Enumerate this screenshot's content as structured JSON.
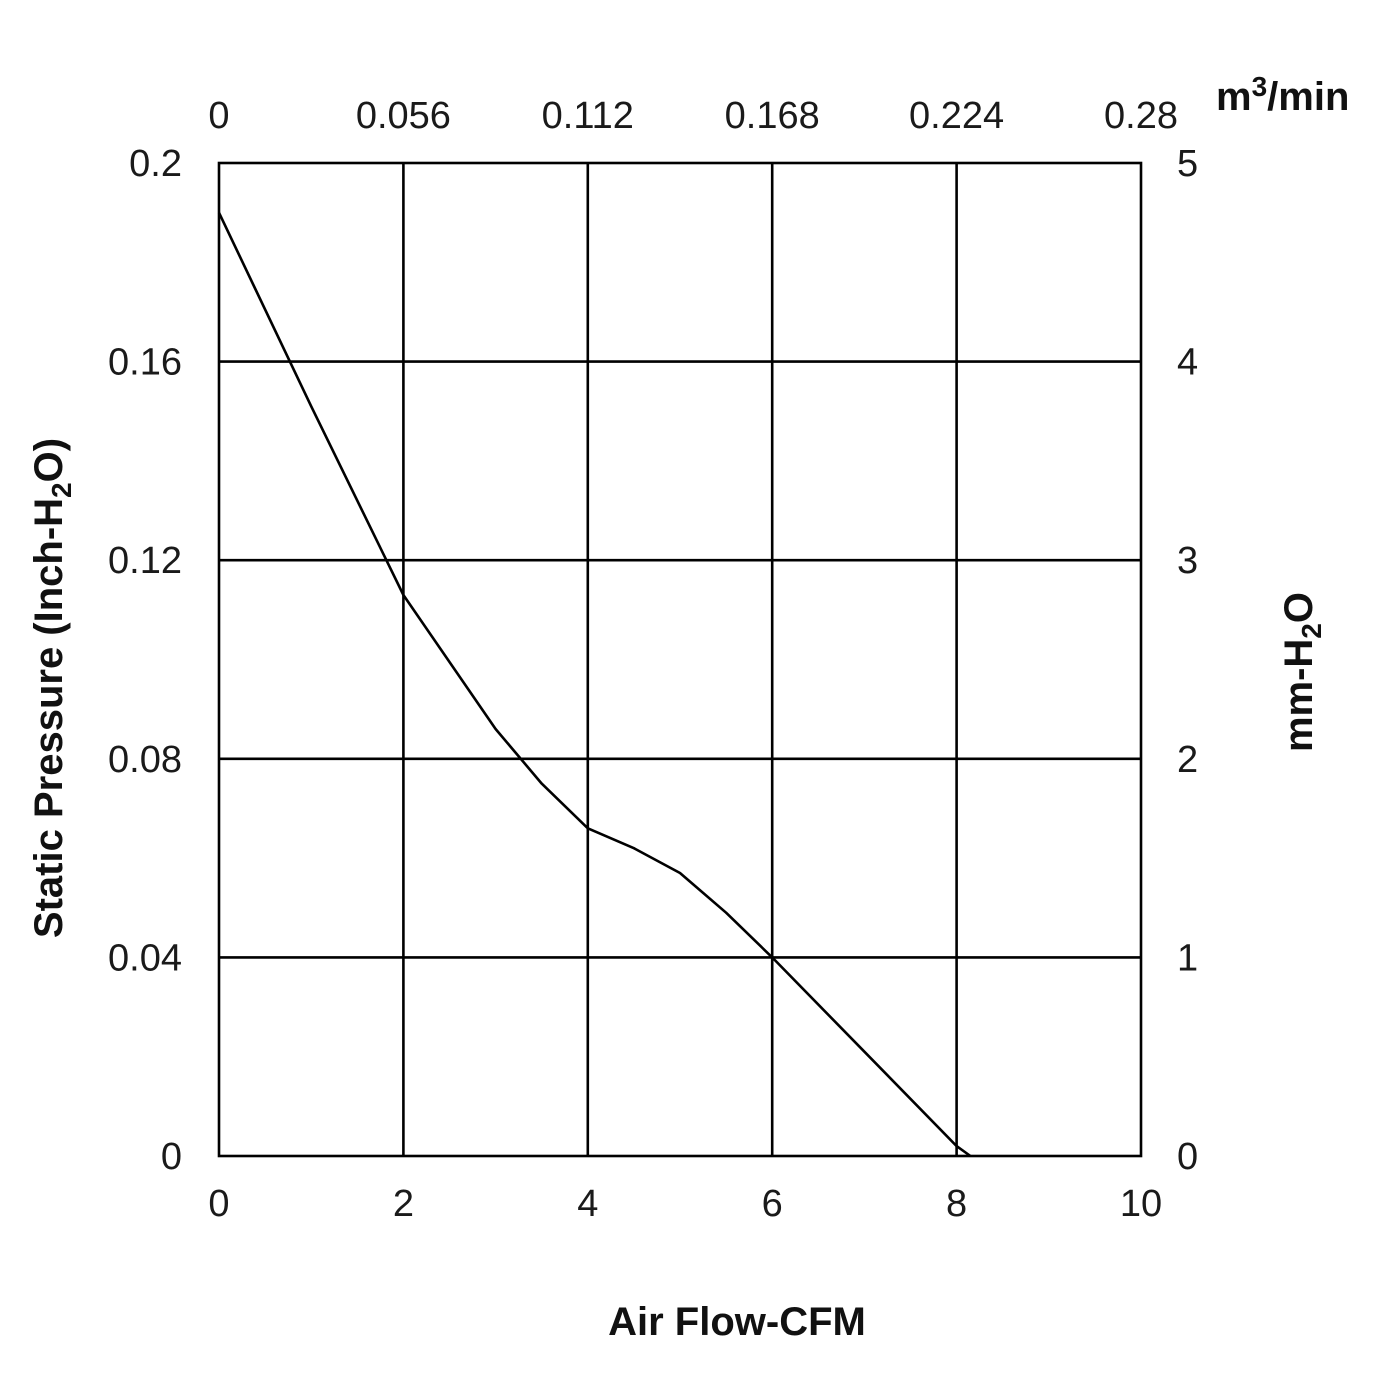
{
  "chart_data": {
    "type": "line",
    "xlabel": "Air Flow-CFM",
    "ylabel": "Static Pressure (Inch-H",
    "ylabel_sub": "2",
    "ylabel_end": "O)",
    "x2label_base": "m",
    "x2label_sup": "3",
    "x2label_end": "/min",
    "y2label_base": "mm-H",
    "y2label_sub": "2",
    "y2label_end": "O",
    "xlim": [
      0,
      10
    ],
    "ylim": [
      0,
      0.2
    ],
    "x2lim": [
      0,
      0.28
    ],
    "y2lim": [
      0,
      5
    ],
    "x_ticks": [
      "0",
      "2",
      "4",
      "6",
      "8",
      "10"
    ],
    "y_ticks": [
      "0",
      "0.04",
      "0.08",
      "0.12",
      "0.16",
      "0.2"
    ],
    "x2_ticks": [
      "0",
      "0.056",
      "0.112",
      "0.168",
      "0.224",
      "0.28"
    ],
    "y2_ticks": [
      "0",
      "1",
      "2",
      "3",
      "4",
      "5"
    ],
    "grid": true,
    "series": [
      {
        "x": [
          0,
          1,
          2,
          3,
          3.5,
          4,
          4.5,
          5,
          5.5,
          6,
          7,
          8,
          8.15
        ],
        "y": [
          0.19,
          0.151,
          0.113,
          0.086,
          0.075,
          0.066,
          0.062,
          0.057,
          0.049,
          0.04,
          0.021,
          0.002,
          0
        ]
      }
    ]
  }
}
